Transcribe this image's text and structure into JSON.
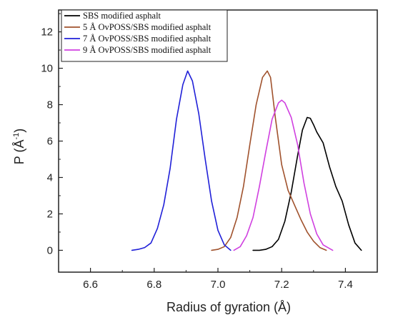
{
  "chart_data": {
    "type": "line",
    "xlabel": "Radius of gyration (Å)",
    "ylabel_main": "P (Å",
    "ylabel_sup": "-1",
    "ylabel_close": ")",
    "xlim": [
      6.5,
      7.5
    ],
    "ylim": [
      -1.2,
      13.2
    ],
    "xticks": [
      6.6,
      6.8,
      7.0,
      7.2,
      7.4
    ],
    "xtick_labels": [
      "6.6",
      "6.8",
      "7.0",
      "7.2",
      "7.4"
    ],
    "yticks": [
      0,
      2,
      4,
      6,
      8,
      10,
      12
    ],
    "ytick_labels": [
      "0",
      "2",
      "4",
      "6",
      "8",
      "10",
      "12"
    ],
    "legend_position": "top-right",
    "grid": false,
    "series": [
      {
        "name": "SBS modified asphalt",
        "color": "#000000",
        "points": [
          [
            7.11,
            0.0
          ],
          [
            7.13,
            0.0
          ],
          [
            7.15,
            0.05
          ],
          [
            7.17,
            0.2
          ],
          [
            7.19,
            0.6
          ],
          [
            7.21,
            1.6
          ],
          [
            7.23,
            3.2
          ],
          [
            7.25,
            5.2
          ],
          [
            7.265,
            6.6
          ],
          [
            7.28,
            7.3
          ],
          [
            7.29,
            7.25
          ],
          [
            7.3,
            6.9
          ],
          [
            7.31,
            6.5
          ],
          [
            7.33,
            5.9
          ],
          [
            7.35,
            4.6
          ],
          [
            7.37,
            3.5
          ],
          [
            7.39,
            2.7
          ],
          [
            7.41,
            1.4
          ],
          [
            7.43,
            0.4
          ],
          [
            7.45,
            0.0
          ]
        ]
      },
      {
        "name": "5 Å OvPOSS/SBS modified asphalt",
        "color": "#a0522d",
        "points": [
          [
            6.98,
            0.0
          ],
          [
            7.0,
            0.05
          ],
          [
            7.02,
            0.2
          ],
          [
            7.04,
            0.7
          ],
          [
            7.06,
            1.8
          ],
          [
            7.08,
            3.5
          ],
          [
            7.1,
            5.8
          ],
          [
            7.12,
            8.0
          ],
          [
            7.14,
            9.5
          ],
          [
            7.155,
            9.85
          ],
          [
            7.165,
            9.5
          ],
          [
            7.18,
            7.3
          ],
          [
            7.2,
            4.7
          ],
          [
            7.22,
            3.3
          ],
          [
            7.24,
            2.5
          ],
          [
            7.26,
            1.7
          ],
          [
            7.28,
            1.0
          ],
          [
            7.3,
            0.5
          ],
          [
            7.32,
            0.15
          ],
          [
            7.34,
            0.0
          ]
        ]
      },
      {
        "name": "7 Å OvPOSS/SBS modified asphalt",
        "color": "#2020d8",
        "points": [
          [
            6.73,
            0.0
          ],
          [
            6.75,
            0.05
          ],
          [
            6.77,
            0.15
          ],
          [
            6.79,
            0.4
          ],
          [
            6.81,
            1.2
          ],
          [
            6.83,
            2.5
          ],
          [
            6.85,
            4.5
          ],
          [
            6.87,
            7.2
          ],
          [
            6.89,
            9.1
          ],
          [
            6.905,
            9.85
          ],
          [
            6.92,
            9.3
          ],
          [
            6.94,
            7.5
          ],
          [
            6.96,
            5.0
          ],
          [
            6.98,
            2.7
          ],
          [
            7.0,
            1.1
          ],
          [
            7.02,
            0.3
          ],
          [
            7.04,
            0.0
          ]
        ]
      },
      {
        "name": "9 Å OvPOSS/SBS modified asphalt",
        "color": "#d040e0",
        "points": [
          [
            7.05,
            0.0
          ],
          [
            7.07,
            0.2
          ],
          [
            7.09,
            0.8
          ],
          [
            7.11,
            1.8
          ],
          [
            7.13,
            3.5
          ],
          [
            7.15,
            5.4
          ],
          [
            7.17,
            7.2
          ],
          [
            7.19,
            8.1
          ],
          [
            7.2,
            8.25
          ],
          [
            7.21,
            8.1
          ],
          [
            7.23,
            7.3
          ],
          [
            7.25,
            5.8
          ],
          [
            7.27,
            3.7
          ],
          [
            7.29,
            2.0
          ],
          [
            7.31,
            0.9
          ],
          [
            7.33,
            0.3
          ],
          [
            7.36,
            0.0
          ]
        ]
      }
    ]
  }
}
